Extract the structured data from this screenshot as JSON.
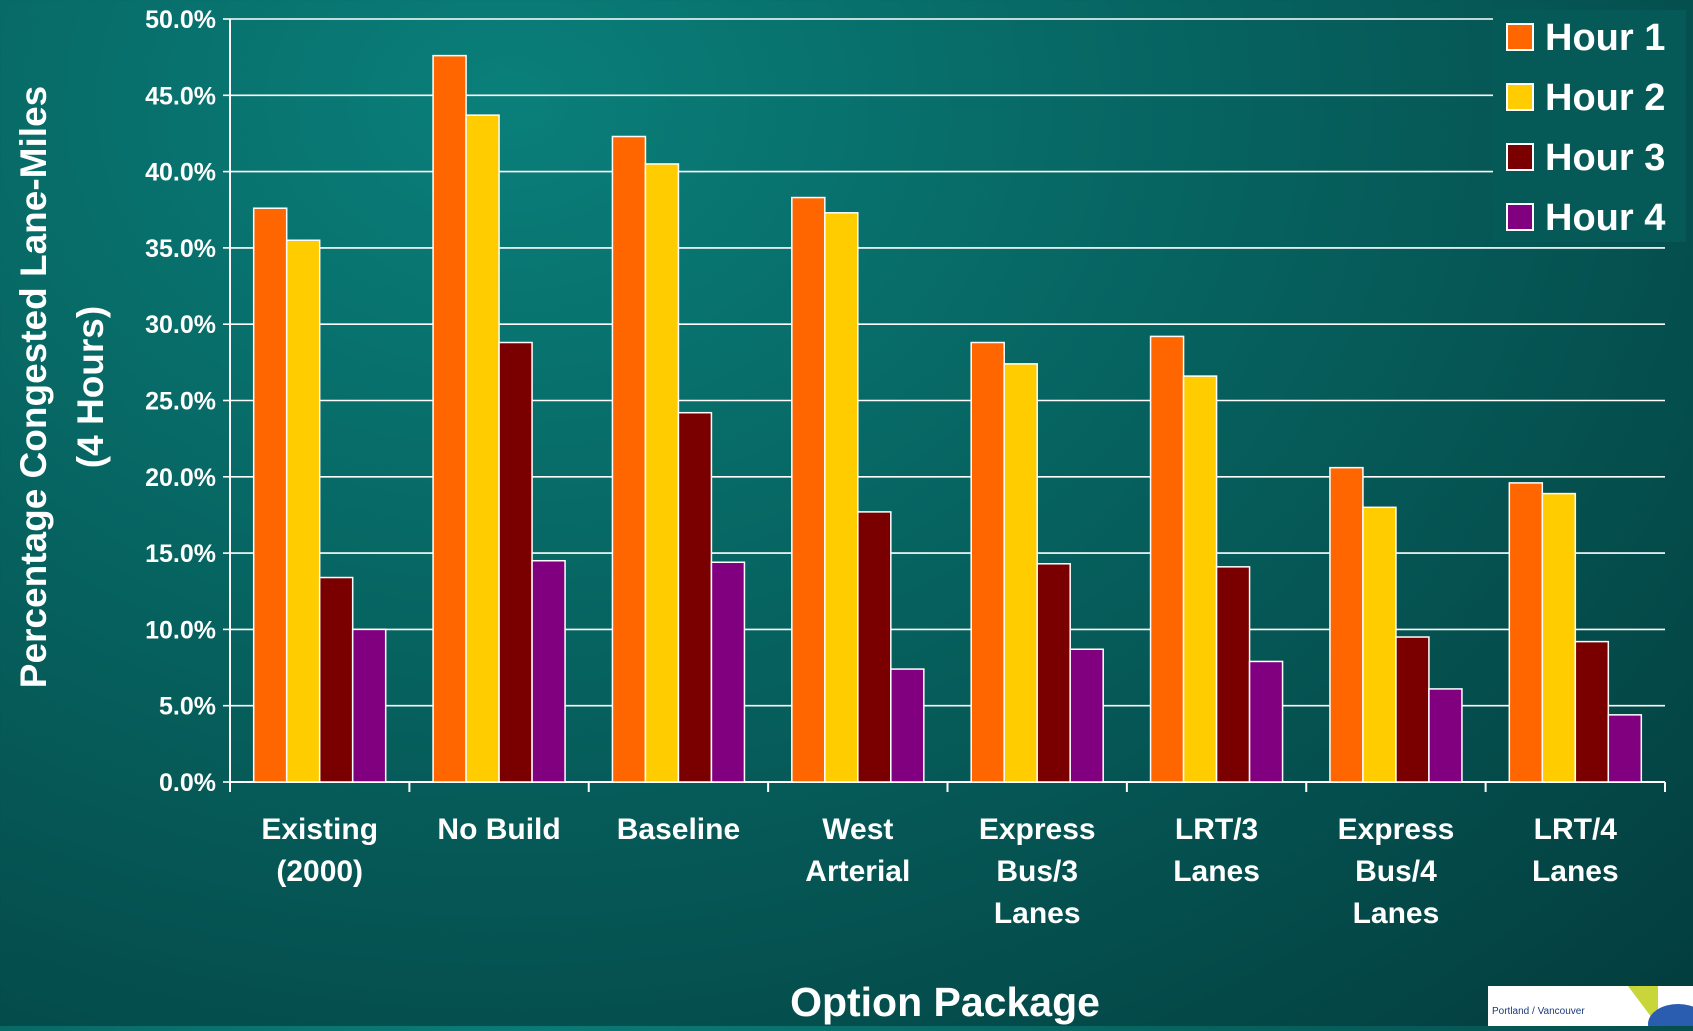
{
  "chart_data": {
    "type": "bar",
    "ylabel_line1": "Percentage Congested Lane-Miles",
    "ylabel_line2": "(4 Hours)",
    "xlabel": "Option Package",
    "ylim": [
      0,
      50
    ],
    "y_tick_step": 5,
    "y_tick_format": "percent_1dp",
    "grid": true,
    "legend_position": "top-right",
    "categories": [
      [
        "Existing",
        "(2000)"
      ],
      [
        "No Build"
      ],
      [
        "Baseline"
      ],
      [
        "West",
        "Arterial"
      ],
      [
        "Express",
        "Bus/3",
        "Lanes"
      ],
      [
        "LRT/3",
        "Lanes"
      ],
      [
        "Express",
        "Bus/4",
        "Lanes"
      ],
      [
        "LRT/4",
        "Lanes"
      ]
    ],
    "series": [
      {
        "name": "Hour 1",
        "color": "#ff6600",
        "values": [
          37.6,
          47.6,
          42.3,
          38.3,
          28.8,
          29.2,
          20.6,
          19.6
        ]
      },
      {
        "name": "Hour 2",
        "color": "#ffcc00",
        "values": [
          35.5,
          43.7,
          40.5,
          37.3,
          27.4,
          26.6,
          18.0,
          18.9
        ]
      },
      {
        "name": "Hour 3",
        "color": "#7a0000",
        "values": [
          13.4,
          28.8,
          24.2,
          17.7,
          14.3,
          14.1,
          9.5,
          9.2
        ]
      },
      {
        "name": "Hour 4",
        "color": "#800080",
        "values": [
          10.0,
          14.5,
          14.4,
          7.4,
          8.7,
          7.9,
          6.1,
          4.4
        ]
      }
    ]
  },
  "logo": {
    "text": "Portland / Vancouver"
  }
}
